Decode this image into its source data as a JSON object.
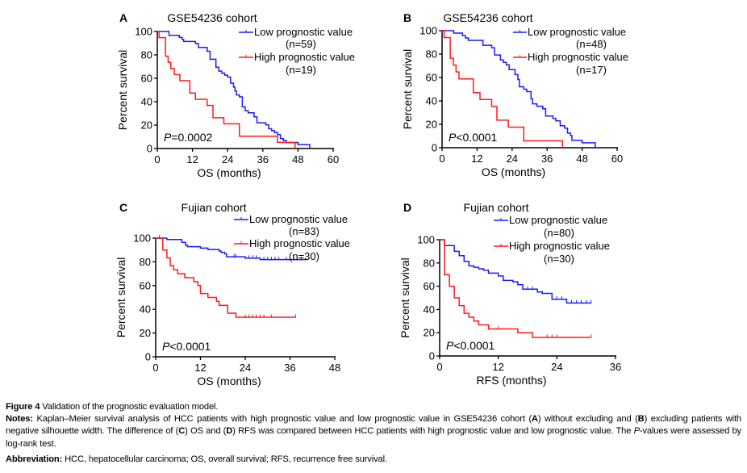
{
  "colors": {
    "low": "#1a1aff",
    "high": "#ff1a1a",
    "axis": "#000000"
  },
  "chart_data": [
    {
      "panel": "A",
      "type": "line",
      "subtype": "kaplan-meier-step",
      "title": "GSE54236 cohort",
      "xlabel": "OS (months)",
      "ylabel": "Percent survival",
      "xlim": [
        0,
        60
      ],
      "ylim": [
        0,
        100
      ],
      "xticks": [
        0,
        12,
        24,
        36,
        48,
        60
      ],
      "yticks": [
        0,
        20,
        40,
        60,
        80,
        100
      ],
      "pvalue_prefix": "P",
      "pvalue_rest": "=0.0002",
      "legend_placement": "top-right",
      "grid": false,
      "series": [
        {
          "name": "Low prognostic value",
          "n_label": "(n=59)",
          "color": "#1a1aff",
          "steps": [
            [
              0,
              100
            ],
            [
              4,
              96.6
            ],
            [
              7.5,
              94.9
            ],
            [
              8.5,
              93.2
            ],
            [
              9,
              91.5
            ],
            [
              13,
              89.8
            ],
            [
              14,
              86.4
            ],
            [
              17,
              83.1
            ],
            [
              18,
              76.3
            ],
            [
              20,
              69.5
            ],
            [
              21,
              66.1
            ],
            [
              22,
              64.4
            ],
            [
              23,
              62.7
            ],
            [
              24,
              61.0
            ],
            [
              25,
              55.9
            ],
            [
              26,
              52.5
            ],
            [
              26.5,
              49.2
            ],
            [
              27,
              45.8
            ],
            [
              28,
              44.1
            ],
            [
              29,
              35.6
            ],
            [
              30,
              32.2
            ],
            [
              31,
              30.5
            ],
            [
              33,
              27.1
            ],
            [
              34,
              22.0
            ],
            [
              37,
              20.3
            ],
            [
              38,
              16.9
            ],
            [
              39,
              15.3
            ],
            [
              40,
              13.6
            ],
            [
              41,
              11.9
            ],
            [
              42,
              8.5
            ],
            [
              43,
              6.8
            ],
            [
              44,
              5.1
            ],
            [
              48,
              3.4
            ],
            [
              52,
              0
            ]
          ],
          "end": 52,
          "censored": []
        },
        {
          "name": "High prognostic value",
          "n_label": "(n=19)",
          "color": "#ff1a1a",
          "steps": [
            [
              0,
              100
            ],
            [
              0.6,
              94.7
            ],
            [
              2.8,
              78.9
            ],
            [
              3.7,
              73.7
            ],
            [
              4.6,
              68.4
            ],
            [
              5.8,
              63.2
            ],
            [
              7.7,
              57.9
            ],
            [
              11.1,
              47.4
            ],
            [
              13,
              42.1
            ],
            [
              17,
              36.8
            ],
            [
              19,
              26.3
            ],
            [
              22.7,
              21.1
            ],
            [
              28,
              10.5
            ],
            [
              41,
              5.3
            ],
            [
              47,
              0
            ]
          ],
          "end": 47,
          "censored": []
        }
      ]
    },
    {
      "panel": "B",
      "type": "line",
      "subtype": "kaplan-meier-step",
      "title": "GSE54236 cohort",
      "xlabel": "OS (months)",
      "ylabel": "Percent survival",
      "xlim": [
        0,
        60
      ],
      "ylim": [
        0,
        100
      ],
      "xticks": [
        0,
        12,
        24,
        36,
        48,
        60
      ],
      "yticks": [
        0,
        20,
        40,
        60,
        80,
        100
      ],
      "pvalue_prefix": "P",
      "pvalue_rest": "<0.0001",
      "legend_placement": "top-right",
      "grid": false,
      "series": [
        {
          "name": "Low prognostic value",
          "n_label": "(n=48)",
          "color": "#1a1aff",
          "steps": [
            [
              0,
              100
            ],
            [
              4,
              97.9
            ],
            [
              7,
              95.8
            ],
            [
              8,
              93.8
            ],
            [
              9,
              91.7
            ],
            [
              14,
              87.5
            ],
            [
              17,
              85.4
            ],
            [
              18,
              79.2
            ],
            [
              20,
              75.0
            ],
            [
              21,
              72.9
            ],
            [
              22,
              70.8
            ],
            [
              23,
              66.7
            ],
            [
              25,
              62.5
            ],
            [
              26,
              58.3
            ],
            [
              26.5,
              52.1
            ],
            [
              28,
              50.0
            ],
            [
              29,
              47.9
            ],
            [
              30.5,
              41.7
            ],
            [
              31,
              37.5
            ],
            [
              32.5,
              35.4
            ],
            [
              34.5,
              33.3
            ],
            [
              35.5,
              27.1
            ],
            [
              38,
              25.0
            ],
            [
              39,
              22.9
            ],
            [
              40.5,
              18.8
            ],
            [
              42,
              16.7
            ],
            [
              43,
              12.5
            ],
            [
              44,
              10.4
            ],
            [
              44.5,
              6.3
            ],
            [
              48,
              4.2
            ],
            [
              52.5,
              0
            ]
          ],
          "end": 52.5,
          "censored": []
        },
        {
          "name": "High prognostic value",
          "n_label": "(n=17)",
          "color": "#ff1a1a",
          "steps": [
            [
              0,
              100
            ],
            [
              0.7,
              94.1
            ],
            [
              2.8,
              76.5
            ],
            [
              3.9,
              70.6
            ],
            [
              4.8,
              64.7
            ],
            [
              5.8,
              58.8
            ],
            [
              10.7,
              47.1
            ],
            [
              13,
              41.2
            ],
            [
              17,
              35.3
            ],
            [
              18.8,
              23.5
            ],
            [
              22.7,
              17.6
            ],
            [
              28,
              5.9
            ],
            [
              41.3,
              0
            ]
          ],
          "end": 41.3,
          "censored": []
        }
      ]
    },
    {
      "panel": "C",
      "type": "line",
      "subtype": "kaplan-meier-step",
      "title": "Fujian cohort",
      "xlabel": "OS (months)",
      "ylabel": "Percent survival",
      "xlim": [
        0,
        48
      ],
      "ylim": [
        0,
        100
      ],
      "xticks": [
        0,
        12,
        24,
        36,
        48
      ],
      "yticks": [
        0,
        20,
        40,
        60,
        80,
        100
      ],
      "pvalue_prefix": "P",
      "pvalue_rest": "<0.0001",
      "legend_placement": "top-right",
      "grid": false,
      "series": [
        {
          "name": "Low prognostic value",
          "n_label": "(n=83)",
          "color": "#1a1aff",
          "steps": [
            [
              0,
              100
            ],
            [
              3,
              98.8
            ],
            [
              7,
              96.4
            ],
            [
              8,
              94.0
            ],
            [
              8.5,
              92.8
            ],
            [
              12,
              91.6
            ],
            [
              14,
              90.4
            ],
            [
              17,
              89.2
            ],
            [
              17.5,
              88.0
            ],
            [
              18.5,
              86.7
            ],
            [
              19,
              84.3
            ],
            [
              24,
              83.1
            ],
            [
              28,
              81.9
            ]
          ],
          "end": 40.5,
          "censored": [
            1,
            21,
            21.5,
            25,
            26,
            27,
            29,
            30,
            31,
            32,
            33,
            35,
            37,
            39
          ]
        },
        {
          "name": "High prognostic value",
          "n_label": "(n=30)",
          "color": "#ff1a1a",
          "steps": [
            [
              0,
              100
            ],
            [
              1.9,
              90.0
            ],
            [
              3,
              83.3
            ],
            [
              3.9,
              76.7
            ],
            [
              4.8,
              73.3
            ],
            [
              5.9,
              70.0
            ],
            [
              7.8,
              66.7
            ],
            [
              10.2,
              63.3
            ],
            [
              11.3,
              60.0
            ],
            [
              12,
              53.3
            ],
            [
              14,
              50.0
            ],
            [
              16.3,
              46.7
            ],
            [
              17,
              43.3
            ],
            [
              19.3,
              36.7
            ],
            [
              21.5,
              33.3
            ]
          ],
          "end": 37.5,
          "censored": [
            24,
            25,
            26,
            27,
            28,
            29,
            31,
            37.5
          ]
        }
      ]
    },
    {
      "panel": "D",
      "type": "line",
      "subtype": "kaplan-meier-step",
      "title": "Fujian cohort",
      "xlabel": "RFS (months)",
      "ylabel": "Percent survival",
      "xlim": [
        0,
        36
      ],
      "ylim": [
        0,
        100
      ],
      "xticks": [
        0,
        12,
        24,
        36
      ],
      "yticks": [
        0,
        20,
        40,
        60,
        80,
        100
      ],
      "pvalue_prefix": "P",
      "pvalue_rest": "<0.0001",
      "legend_placement": "top-right",
      "grid": false,
      "series": [
        {
          "name": "Low prognostic value",
          "n_label": "(n=80)",
          "color": "#1a1aff",
          "steps": [
            [
              0,
              100
            ],
            [
              1,
              95.0
            ],
            [
              3,
              90.0
            ],
            [
              4,
              86.3
            ],
            [
              5,
              81.3
            ],
            [
              6,
              77.5
            ],
            [
              7,
              76.3
            ],
            [
              8,
              75.0
            ],
            [
              9,
              73.8
            ],
            [
              10,
              71.3
            ],
            [
              12,
              68.8
            ],
            [
              13,
              65.0
            ],
            [
              15,
              63.8
            ],
            [
              16,
              61.3
            ],
            [
              17,
              57.5
            ],
            [
              20,
              55.0
            ],
            [
              21,
              53.8
            ],
            [
              23,
              48.8
            ],
            [
              26,
              45.6
            ]
          ],
          "end": 31,
          "censored": [
            18,
            19,
            21,
            24,
            25,
            27,
            28,
            29,
            30,
            31
          ]
        },
        {
          "name": "High prognostic value",
          "n_label": "(n=30)",
          "color": "#ff1a1a",
          "steps": [
            [
              0,
              100
            ],
            [
              1,
              70.0
            ],
            [
              2,
              60.0
            ],
            [
              3,
              50.0
            ],
            [
              4,
              43.3
            ],
            [
              5,
              36.7
            ],
            [
              6,
              33.3
            ],
            [
              7,
              30.0
            ],
            [
              8,
              26.7
            ],
            [
              10,
              23.3
            ],
            [
              16,
              20.0
            ],
            [
              19,
              16.0
            ]
          ],
          "end": 31,
          "censored": [
            12,
            22,
            23,
            24,
            31
          ]
        }
      ]
    }
  ],
  "caption": {
    "figure_label": "Figure 4",
    "figure_title": "Validation of the prognostic evaluation model.",
    "notes_label": "Notes:",
    "notes_1": "Kaplan–Meier survival analysis of HCC patients with high prognostic value and low prognostic value in GSE54236 cohort (",
    "notes_A": "A",
    "notes_2": ") without excluding and (",
    "notes_B": "B",
    "notes_3": ") excluding patients with negative silhouette width. The difference of (",
    "notes_C": "C",
    "notes_4": ") OS and (",
    "notes_D": "D",
    "notes_5": ") RFS was compared between HCC patients with high prognostic value and low prognostic value. The ",
    "notes_P": "P",
    "notes_6": "-values were assessed by log-rank test.",
    "abbr_label": "Abbreviation:",
    "abbr_text": "HCC, hepatocellular carcinoma; OS, overall survival; RFS, recurrence free survival."
  }
}
